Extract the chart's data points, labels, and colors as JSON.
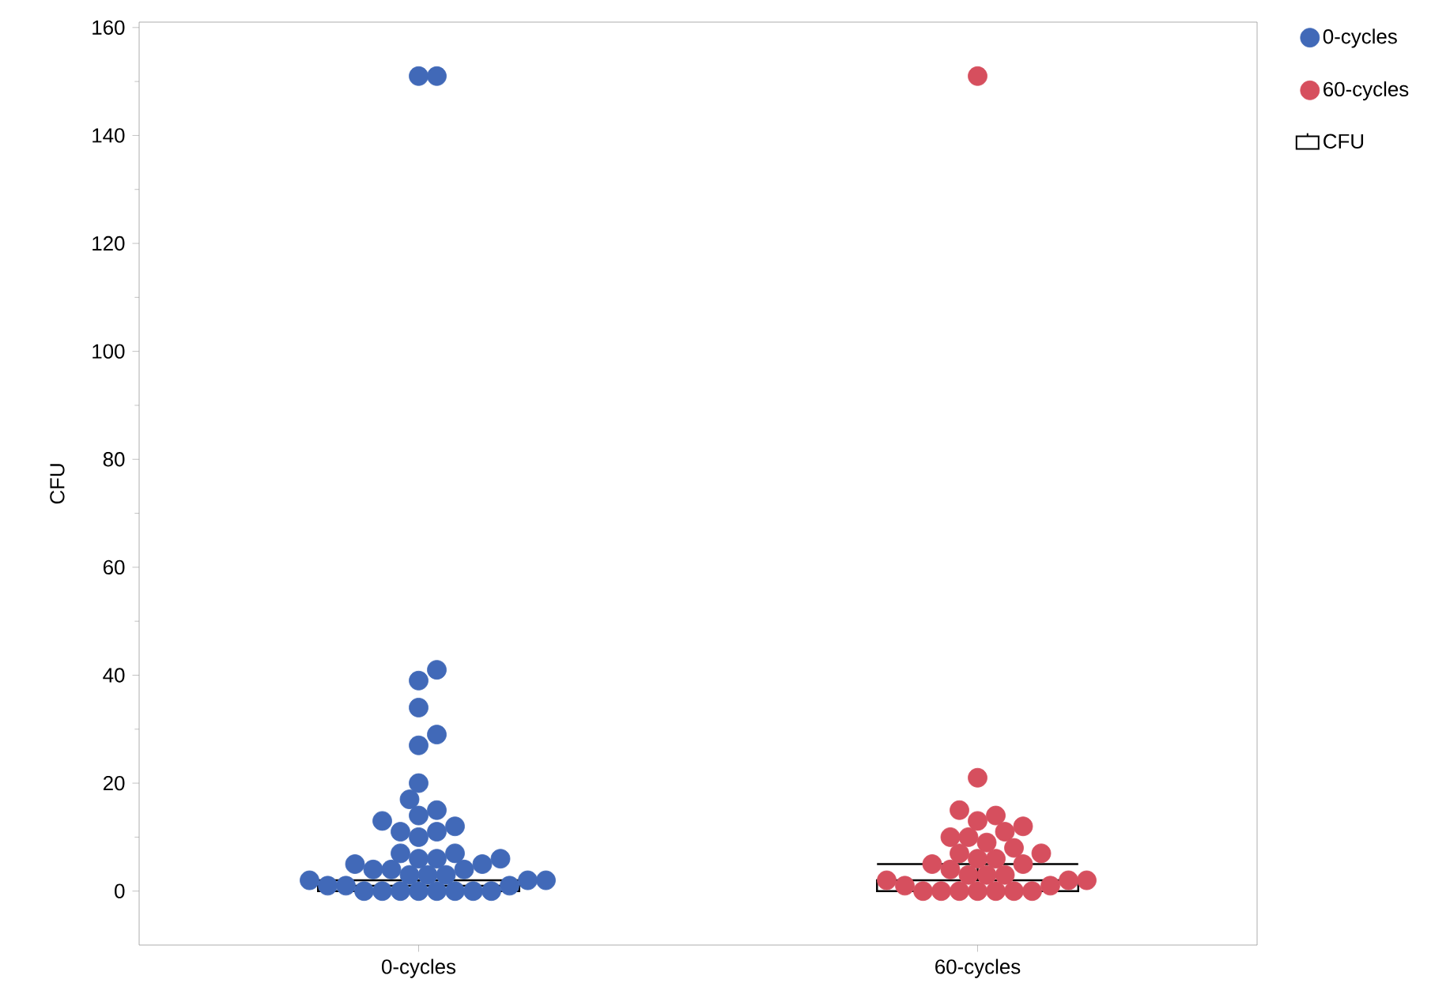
{
  "chart_data": {
    "type": "box",
    "ylabel": "CFU",
    "categories": [
      "0-cycles",
      "60-cycles"
    ],
    "ylim": [
      -10,
      161
    ],
    "yticks": [
      0,
      20,
      40,
      60,
      80,
      100,
      120,
      140,
      160
    ],
    "grid": false,
    "legend": "top right",
    "marker": "circle",
    "series": [
      {
        "type": "scatter",
        "name": "0-cycles",
        "color": "#4169b8",
        "x": [
          "0-cycles",
          "0-cycles",
          "0-cycles",
          "0-cycles",
          "0-cycles",
          "0-cycles",
          "0-cycles",
          "0-cycles",
          "0-cycles",
          "0-cycles",
          "0-cycles",
          "0-cycles",
          "0-cycles",
          "0-cycles",
          "0-cycles",
          "0-cycles",
          "0-cycles",
          "0-cycles",
          "0-cycles",
          "0-cycles",
          "0-cycles",
          "0-cycles",
          "0-cycles",
          "0-cycles",
          "0-cycles",
          "0-cycles",
          "0-cycles",
          "0-cycles",
          "0-cycles",
          "0-cycles",
          "0-cycles",
          "0-cycles",
          "0-cycles",
          "0-cycles",
          "0-cycles",
          "0-cycles",
          "0-cycles",
          "0-cycles",
          "0-cycles",
          "0-cycles",
          "0-cycles",
          "0-cycles",
          "0-cycles"
        ],
        "values": [
          151,
          151,
          41,
          39,
          34,
          29,
          27,
          20,
          17,
          15,
          14,
          13,
          12,
          11,
          11,
          10,
          7,
          7,
          6,
          6,
          6,
          5,
          5,
          4,
          4,
          4,
          3,
          3,
          3,
          2,
          2,
          2,
          1,
          1,
          1,
          0,
          0,
          0,
          0,
          0,
          0,
          0,
          0
        ]
      },
      {
        "type": "scatter",
        "name": "60-cycles",
        "color": "#d64f5e",
        "x": [
          "60-cycles",
          "60-cycles",
          "60-cycles",
          "60-cycles",
          "60-cycles",
          "60-cycles",
          "60-cycles",
          "60-cycles",
          "60-cycles",
          "60-cycles",
          "60-cycles",
          "60-cycles",
          "60-cycles",
          "60-cycles",
          "60-cycles",
          "60-cycles",
          "60-cycles",
          "60-cycles",
          "60-cycles",
          "60-cycles",
          "60-cycles",
          "60-cycles",
          "60-cycles",
          "60-cycles",
          "60-cycles",
          "60-cycles",
          "60-cycles",
          "60-cycles",
          "60-cycles",
          "60-cycles",
          "60-cycles",
          "60-cycles",
          "60-cycles"
        ],
        "values": [
          151,
          21,
          15,
          14,
          13,
          12,
          11,
          10,
          10,
          9,
          8,
          7,
          7,
          6,
          6,
          5,
          5,
          4,
          3,
          3,
          3,
          2,
          2,
          2,
          1,
          1,
          0,
          0,
          0,
          0,
          0,
          0,
          0
        ]
      },
      {
        "type": "box",
        "name": "CFU",
        "color": "#000000",
        "boxes": [
          {
            "low": 0,
            "q1": 0,
            "median": 0,
            "q3": 1,
            "high": 2
          },
          {
            "low": 0,
            "q1": 0,
            "median": 0,
            "q3": 2,
            "high": 5
          }
        ]
      }
    ]
  }
}
